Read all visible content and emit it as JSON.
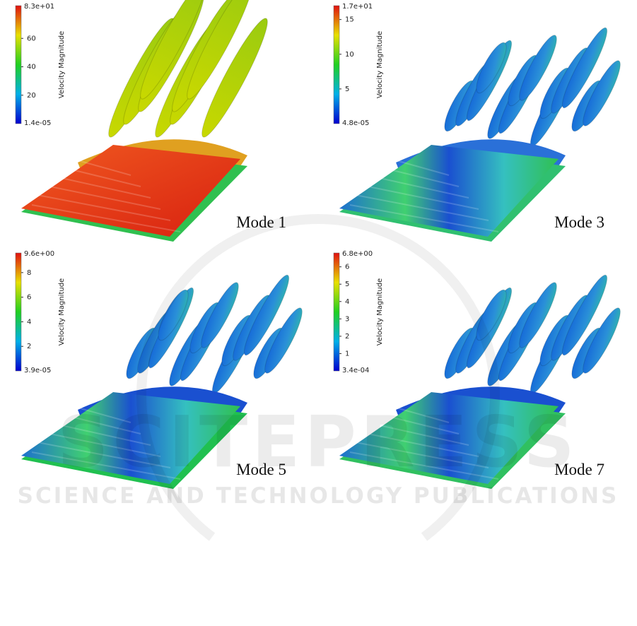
{
  "figure": {
    "panels": [
      {
        "mode": "Mode 1",
        "colorbar": {
          "title": "Velocity Magnitude",
          "max": "8.3e+01",
          "min": "1.4e-05",
          "ticks": [
            60,
            40,
            20
          ]
        }
      },
      {
        "mode": "Mode 3",
        "colorbar": {
          "title": "Velocity Magnitude",
          "max": "1.7e+01",
          "min": "4.8e-05",
          "ticks": [
            15,
            10,
            5
          ]
        }
      },
      {
        "mode": "Mode 5",
        "colorbar": {
          "title": "Velocity Magnitude",
          "max": "9.6e+00",
          "min": "3.9e-05",
          "ticks": [
            8,
            6,
            4,
            2
          ]
        }
      },
      {
        "mode": "Mode 7",
        "colorbar": {
          "title": "Velocity Magnitude",
          "max": "6.8e+00",
          "min": "3.4e-04",
          "ticks": [
            6,
            5,
            4,
            3,
            2,
            1
          ]
        }
      }
    ],
    "watermark": {
      "logo": "SCITEPRESS",
      "subtitle": "SCIENCE AND TECHNOLOGY PUBLICATIONS"
    }
  }
}
